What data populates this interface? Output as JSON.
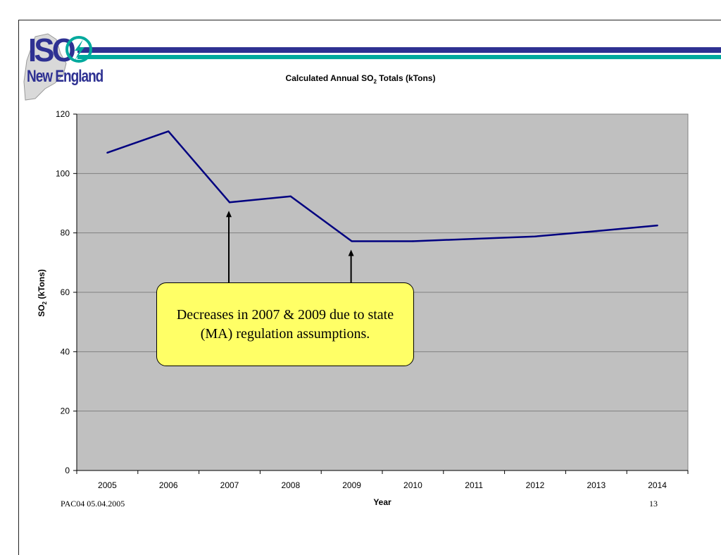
{
  "logo": {
    "iso_text": "ISO",
    "region_text": "New England"
  },
  "chart_data": {
    "type": "line",
    "title": "Calculated Annual SO2 Totals (kTons)",
    "xlabel": "Year",
    "ylabel": "SO2 (kTons)",
    "x": [
      "2005",
      "2006",
      "2007",
      "2008",
      "2009",
      "2010",
      "2011",
      "2012",
      "2013",
      "2014"
    ],
    "values": [
      107,
      114.2,
      90.3,
      92.3,
      77.2,
      77.2,
      78,
      78.8,
      80.6,
      82.5
    ],
    "ylim": [
      0,
      120
    ],
    "yticks": [
      0,
      20,
      40,
      60,
      80,
      100,
      120
    ],
    "grid": true,
    "line_color": "#000080",
    "plot_background": "#c0c0c0",
    "annotation": {
      "text": "Decreases in 2007 & 2009 due to state (MA) regulation assumptions.",
      "points_to": [
        "2007",
        "2009"
      ]
    }
  },
  "title_parts": {
    "pre": "Calculated Annual SO",
    "sub": "2",
    "post": " Totals (kTons)"
  },
  "ylabel_parts": {
    "pre": "SO",
    "sub": "2",
    "post": " (kTons)"
  },
  "footer": {
    "left": "PAC04 05.04.2005",
    "page_number": "13"
  }
}
